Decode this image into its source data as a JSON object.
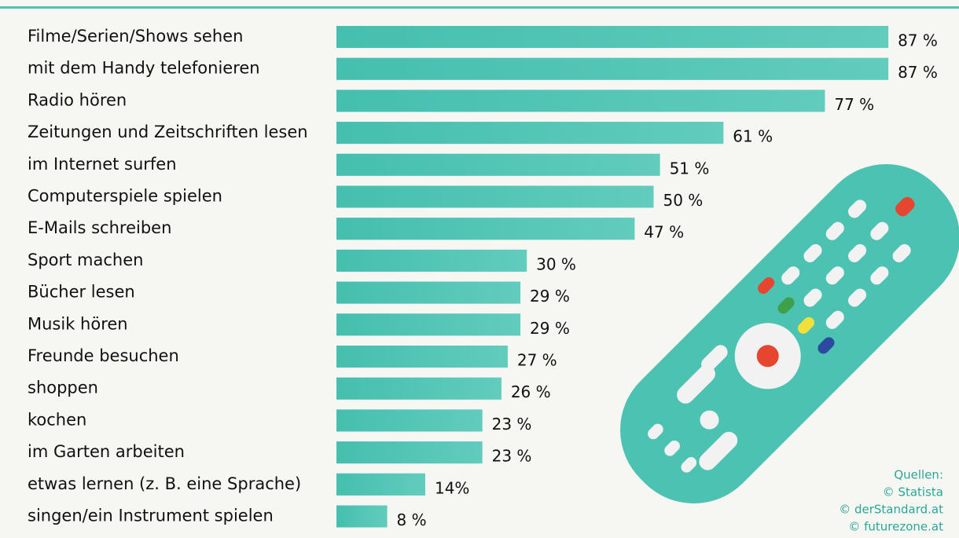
{
  "chart_data": {
    "type": "bar",
    "categories": [
      "Filme/Serien/Shows sehen",
      "mit dem Handy telefonieren",
      "Radio hören",
      "Zeitungen und Zeitschriften lesen",
      "im Internet surfen",
      "Computerspiele spielen",
      "E-Mails schreiben",
      "Sport machen",
      "Bücher lesen",
      "Musik hören",
      "Freunde besuchen",
      "shoppen",
      "kochen",
      "im Garten arbeiten",
      "etwas lernen (z. B. eine Sprache)",
      "singen/ein Instrument spielen"
    ],
    "values": [
      87,
      87,
      77,
      61,
      51,
      50,
      47,
      30,
      29,
      29,
      27,
      26,
      23,
      23,
      14,
      8
    ],
    "value_labels": [
      "87 %",
      "87 %",
      "77 %",
      "61 %",
      "51 %",
      "50 %",
      "47 %",
      "30 %",
      "29 %",
      "29 %",
      "27 %",
      "26 %",
      "23 %",
      "23 %",
      "14%",
      "8 %"
    ],
    "color": "#4ec3b3",
    "sources": [
      "Quellen:",
      "© Statista",
      "© derStandard.at",
      "© futurezone.at"
    ]
  }
}
